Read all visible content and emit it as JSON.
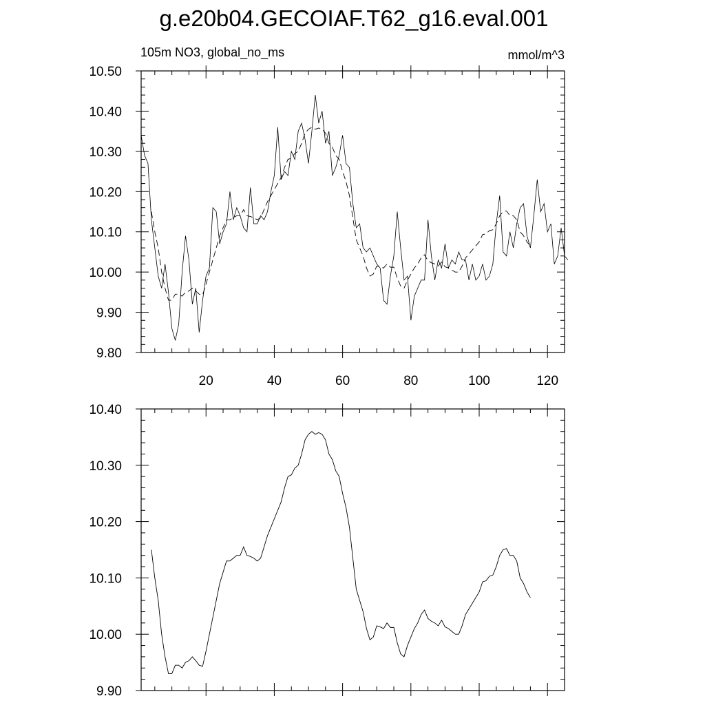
{
  "figure_title": "g.e20b04.GECOIAF.T62_g16.eval.001",
  "chart_data": [
    {
      "type": "line",
      "left_label": "105m NO3, global_no_ms",
      "right_label": "mmol/m^3",
      "xlim": [
        1,
        125
      ],
      "ylim": [
        9.8,
        10.5
      ],
      "xticks": [
        20,
        40,
        60,
        80,
        100,
        120
      ],
      "xtick_labels": [
        "20",
        "40",
        "60",
        "80",
        "100",
        "120"
      ],
      "yticks": [
        9.8,
        9.9,
        10.0,
        10.1,
        10.2,
        10.3,
        10.4,
        10.5
      ],
      "ytick_labels": [
        "9.80",
        "9.90",
        "10.00",
        "10.10",
        "10.20",
        "10.30",
        "10.40",
        "10.50"
      ],
      "series": [
        {
          "style": "solid-thin",
          "x_start": 1,
          "values": [
            10.34,
            10.29,
            10.27,
            10.13,
            10.06,
            9.99,
            9.96,
            10.02,
            9.95,
            9.86,
            9.83,
            9.87,
            10.0,
            10.09,
            10.03,
            9.92,
            9.96,
            9.85,
            9.93,
            9.99,
            10.01,
            10.16,
            10.15,
            10.07,
            10.1,
            10.12,
            10.2,
            10.13,
            10.16,
            10.14,
            10.11,
            10.1,
            10.21,
            10.12,
            10.12,
            10.14,
            10.13,
            10.15,
            10.2,
            10.24,
            10.36,
            10.23,
            10.25,
            10.24,
            10.3,
            10.28,
            10.35,
            10.37,
            10.33,
            10.27,
            10.35,
            10.44,
            10.37,
            10.4,
            10.32,
            10.35,
            10.24,
            10.26,
            10.29,
            10.34,
            10.27,
            10.26,
            10.17,
            10.11,
            10.12,
            10.06,
            10.05,
            10.06,
            10.04,
            10.02,
            10.01,
            9.93,
            9.92,
            9.99,
            10.04,
            10.15,
            10.06,
            9.98,
            9.99,
            9.88,
            9.94,
            9.96,
            9.98,
            9.98,
            10.13,
            10.04,
            9.98,
            10.03,
            10.01,
            10.07,
            10.01,
            10.03,
            10.02,
            10.05,
            10.03,
            10.03,
            9.98,
            10.02,
            9.98,
            9.99,
            10.02,
            9.98,
            9.99,
            10.02,
            10.12,
            10.19,
            10.05,
            10.04,
            10.1,
            10.06,
            10.12,
            10.16,
            10.17,
            10.09,
            10.06,
            10.14,
            10.23,
            10.15,
            10.17,
            10.1,
            10.12,
            10.02,
            10.04,
            10.11,
            10.04,
            10.03
          ]
        },
        {
          "style": "dashed",
          "x_start": 4,
          "values": [
            10.15,
            10.1,
            10.06,
            10.0,
            9.96,
            9.93,
            9.93,
            9.945,
            9.945,
            9.94,
            9.95,
            9.953,
            9.96,
            9.953,
            9.945,
            9.943,
            9.97,
            10.0,
            10.03,
            10.06,
            10.09,
            10.11,
            10.13,
            10.13,
            10.135,
            10.14,
            10.14,
            10.155,
            10.14,
            10.138,
            10.135,
            10.13,
            10.135,
            10.155,
            10.175,
            10.19,
            10.205,
            10.22,
            10.235,
            10.26,
            10.28,
            10.283,
            10.295,
            10.3,
            10.32,
            10.345,
            10.355,
            10.36,
            10.355,
            10.358,
            10.355,
            10.345,
            10.32,
            10.31,
            10.29,
            10.28,
            10.25,
            10.225,
            10.19,
            10.135,
            10.08,
            10.06,
            10.04,
            10.01,
            9.99,
            9.995,
            10.015,
            10.013,
            10.01,
            10.02,
            10.012,
            10.012,
            9.985,
            9.965,
            9.96,
            9.98,
            9.995,
            10.01,
            10.02,
            10.035,
            10.043,
            10.028,
            10.023,
            10.02,
            10.015,
            10.025,
            10.013,
            10.01,
            10.005,
            10.0,
            10.0,
            10.015,
            10.035,
            10.045,
            10.055,
            10.065,
            10.075,
            10.093,
            10.095,
            10.103,
            10.105,
            10.12,
            10.14,
            10.15,
            10.152,
            10.14,
            10.14,
            10.13,
            10.1,
            10.09,
            10.075,
            10.065
          ]
        }
      ]
    },
    {
      "type": "line",
      "xlim": [
        1,
        125
      ],
      "ylim": [
        9.9,
        10.4
      ],
      "yticks": [
        9.9,
        10.0,
        10.1,
        10.2,
        10.3,
        10.4
      ],
      "ytick_labels": [
        "9.90",
        "10.00",
        "10.10",
        "10.20",
        "10.30",
        "10.40"
      ],
      "xticks": [
        20,
        40,
        60,
        80,
        100,
        120
      ],
      "series": [
        {
          "style": "solid",
          "x_start": 4,
          "values": [
            10.15,
            10.1,
            10.06,
            10.0,
            9.96,
            9.93,
            9.93,
            9.945,
            9.945,
            9.94,
            9.95,
            9.953,
            9.96,
            9.953,
            9.945,
            9.943,
            9.97,
            10.0,
            10.03,
            10.06,
            10.09,
            10.11,
            10.13,
            10.13,
            10.135,
            10.14,
            10.14,
            10.155,
            10.14,
            10.138,
            10.135,
            10.13,
            10.135,
            10.155,
            10.175,
            10.19,
            10.205,
            10.22,
            10.235,
            10.26,
            10.28,
            10.283,
            10.295,
            10.3,
            10.32,
            10.345,
            10.355,
            10.36,
            10.355,
            10.358,
            10.355,
            10.345,
            10.32,
            10.31,
            10.29,
            10.28,
            10.25,
            10.225,
            10.19,
            10.135,
            10.08,
            10.06,
            10.04,
            10.01,
            9.99,
            9.995,
            10.015,
            10.013,
            10.01,
            10.02,
            10.012,
            10.012,
            9.985,
            9.965,
            9.96,
            9.98,
            9.995,
            10.01,
            10.02,
            10.035,
            10.043,
            10.028,
            10.023,
            10.02,
            10.015,
            10.025,
            10.013,
            10.01,
            10.005,
            10.0,
            10.0,
            10.015,
            10.035,
            10.045,
            10.055,
            10.065,
            10.075,
            10.093,
            10.095,
            10.103,
            10.105,
            10.12,
            10.14,
            10.15,
            10.152,
            10.14,
            10.14,
            10.13,
            10.1,
            10.09,
            10.075,
            10.065
          ]
        }
      ]
    }
  ]
}
